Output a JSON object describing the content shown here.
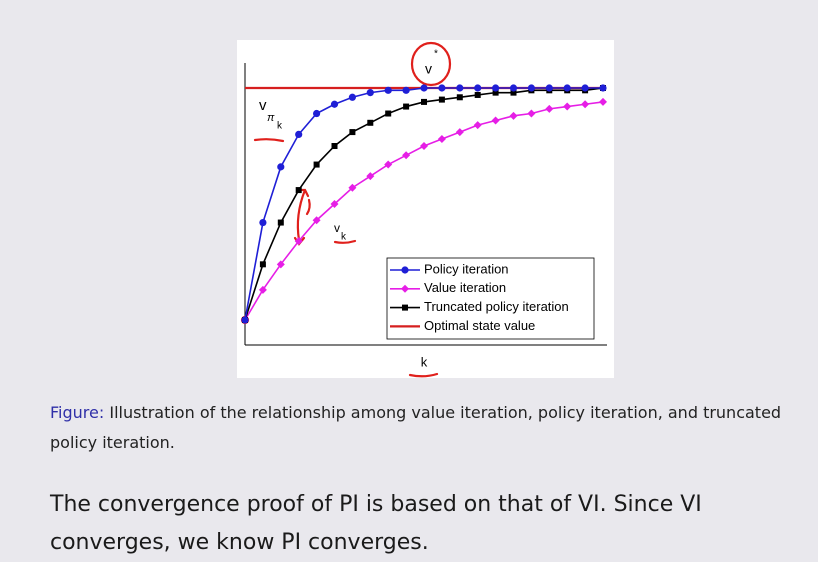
{
  "chart_data": {
    "type": "line",
    "x_label": "k",
    "x": [
      0,
      1,
      2,
      3,
      4,
      5,
      6,
      7,
      8,
      9,
      10,
      11,
      12,
      13,
      14,
      15,
      16,
      17,
      18,
      19,
      20
    ],
    "xlim": [
      0,
      20
    ],
    "ylim": [
      -0.1,
      1.1
    ],
    "series": [
      {
        "name": "Policy iteration",
        "color": "#1f1fd6",
        "marker": "circle",
        "values": [
          0,
          0.42,
          0.66,
          0.8,
          0.89,
          0.93,
          0.96,
          0.98,
          0.99,
          0.99,
          1,
          1,
          1,
          1,
          1,
          1,
          1,
          1,
          1,
          1,
          1
        ]
      },
      {
        "name": "Value iteration",
        "color": "#e61ee6",
        "marker": "diamond",
        "values": [
          0,
          0.13,
          0.24,
          0.34,
          0.43,
          0.5,
          0.57,
          0.62,
          0.67,
          0.71,
          0.75,
          0.78,
          0.81,
          0.84,
          0.86,
          0.88,
          0.89,
          0.91,
          0.92,
          0.93,
          0.94
        ]
      },
      {
        "name": "Truncated policy iteration",
        "color": "#000000",
        "marker": "square",
        "values": [
          0,
          0.24,
          0.42,
          0.56,
          0.67,
          0.75,
          0.81,
          0.85,
          0.89,
          0.92,
          0.94,
          0.95,
          0.96,
          0.97,
          0.98,
          0.98,
          0.99,
          0.99,
          0.99,
          0.99,
          1
        ]
      },
      {
        "name": "Optimal state value",
        "color": "#d61f1f",
        "marker": "none",
        "values": [
          1,
          1,
          1,
          1,
          1,
          1,
          1,
          1,
          1,
          1,
          1,
          1,
          1,
          1,
          1,
          1,
          1,
          1,
          1,
          1,
          1
        ]
      }
    ],
    "annotations": [
      {
        "text": "v",
        "sub": "π",
        "subsub": "k"
      },
      {
        "text": "v",
        "sub": "k"
      },
      {
        "text": "v",
        "sup": "*"
      }
    ]
  },
  "caption": {
    "label": "Figure:",
    "text": "Illustration of the relationship among value iteration, policy iteration, and truncated policy iteration."
  },
  "body": "The convergence proof of PI is based on that of VI. Since VI converges, we know PI converges."
}
